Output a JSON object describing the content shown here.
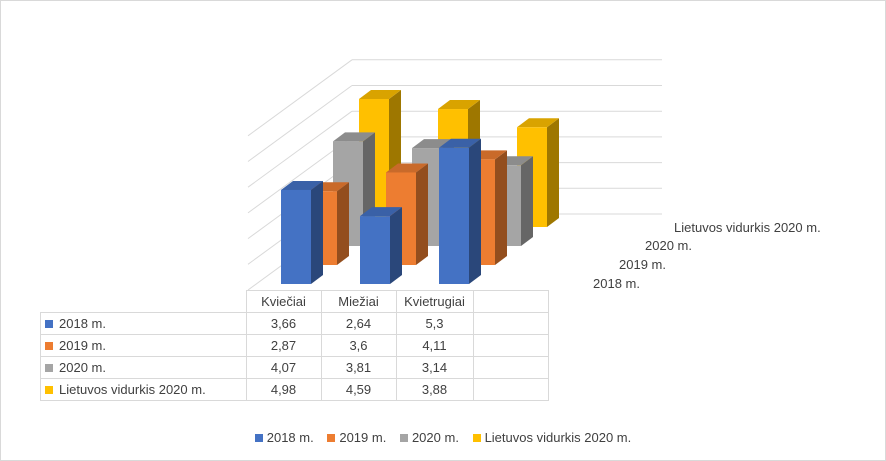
{
  "chart_data": {
    "type": "bar",
    "categories": [
      "Kviečiai",
      "Miežiai",
      "Kvietrugiai"
    ],
    "series": [
      {
        "name": "2018 m.",
        "color": "#4472c4",
        "values": [
          3.66,
          2.64,
          5.3
        ]
      },
      {
        "name": "2019 m.",
        "color": "#ed7d31",
        "values": [
          2.87,
          3.6,
          4.11
        ]
      },
      {
        "name": "2020 m.",
        "color": "#a5a5a5",
        "values": [
          4.07,
          3.81,
          3.14
        ]
      },
      {
        "name": "Lietuvos vidurkis 2020 m.",
        "color": "#ffc000",
        "values": [
          4.98,
          4.59,
          3.88
        ]
      }
    ],
    "ylim": [
      0,
      6
    ],
    "gridlines": true,
    "data_table": true,
    "legend": "bottom",
    "depth_axis_labels": [
      "2018 m.",
      "2019 m.",
      "2020 m.",
      "Lietuvos vidurkis 2020 m."
    ]
  }
}
